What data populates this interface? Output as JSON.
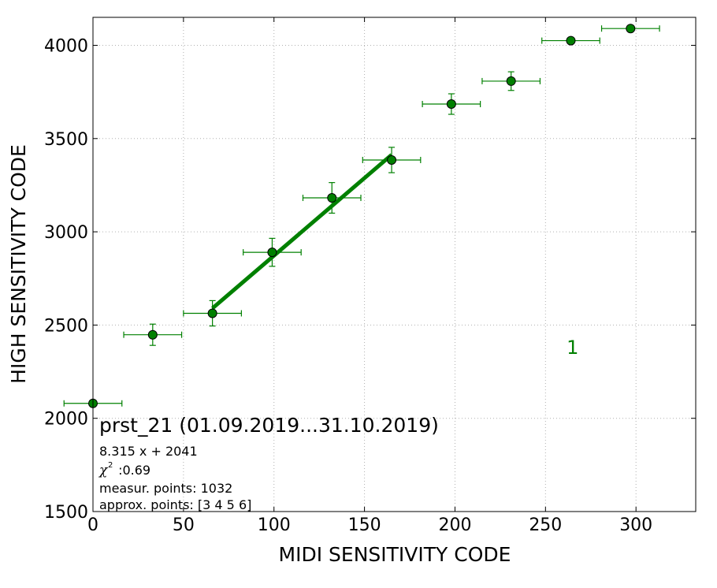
{
  "chart_data": {
    "type": "scatter",
    "xlabel": "MIDI SENSITIVITY CODE",
    "ylabel": "HIGH SENSITIVITY CODE",
    "xlim": [
      0,
      333
    ],
    "ylim": [
      1500,
      4150
    ],
    "xticks": [
      0,
      50,
      100,
      150,
      200,
      250,
      300
    ],
    "yticks": [
      1500,
      2000,
      2500,
      3000,
      3500,
      4000
    ],
    "grid": true,
    "marker_color": "#008000",
    "points": [
      {
        "x": 0,
        "y": 2080,
        "xerr": 16,
        "yerr": 0
      },
      {
        "x": 33,
        "y": 2448,
        "xerr": 16,
        "yerr": 57
      },
      {
        "x": 66,
        "y": 2563,
        "xerr": 16,
        "yerr": 68
      },
      {
        "x": 99,
        "y": 2890,
        "xerr": 16,
        "yerr": 75
      },
      {
        "x": 132,
        "y": 3182,
        "xerr": 16,
        "yerr": 82
      },
      {
        "x": 165,
        "y": 3385,
        "xerr": 16,
        "yerr": 68
      },
      {
        "x": 198,
        "y": 3685,
        "xerr": 16,
        "yerr": 55
      },
      {
        "x": 231,
        "y": 3808,
        "xerr": 16,
        "yerr": 50
      },
      {
        "x": 264,
        "y": 4025,
        "xerr": 16,
        "yerr": 0
      },
      {
        "x": 297,
        "y": 4090,
        "xerr": 16,
        "yerr": 0
      }
    ],
    "fit_line": {
      "slope": 8.315,
      "intercept": 2041,
      "x_from": 66,
      "x_to": 165,
      "color": "#008000"
    },
    "group_label": {
      "text": "1",
      "x": 265,
      "y": 2380
    },
    "annotations": {
      "title": "prst_21 (01.09.2019...31.10.2019)",
      "equation": "8.315 x + 2041",
      "chi_symbol": "χ",
      "chi_power": "2",
      "chi_value": " :0.69",
      "measur_points": "measur. points: 1032",
      "approx_points": "approx. points: [3 4 5 6]"
    }
  }
}
